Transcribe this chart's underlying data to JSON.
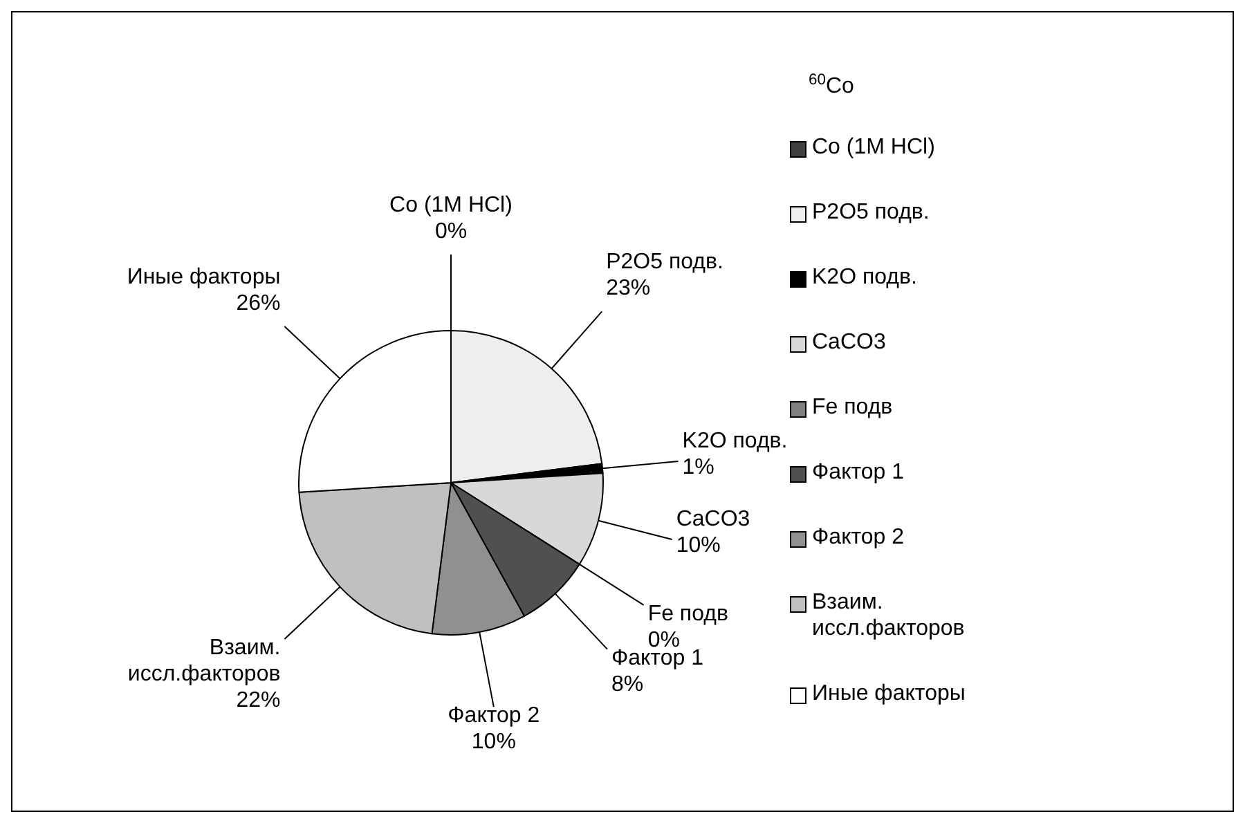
{
  "chart_data": {
    "type": "pie",
    "title": "$^{60}$Co",
    "categories": [
      "Co (1M HCl)",
      "P2O5 подв.",
      "K2O подв.",
      "CaCO3",
      "Fe подв",
      "Фактор 1",
      "Фактор 2",
      "Взаим. иссл.факторов",
      "Иные факторы"
    ],
    "values": [
      0,
      23,
      1,
      10,
      0,
      8,
      10,
      22,
      26
    ],
    "value_labels": [
      "0%",
      "23%",
      "1%",
      "10%",
      "0%",
      "8%",
      "10%",
      "22%",
      "26%"
    ],
    "colors": [
      "#404040",
      "#eeeeee",
      "#000000",
      "#d8d8d8",
      "#808080",
      "#505050",
      "#909090",
      "#c0c0c0",
      "#ffffff"
    ],
    "legend": "right"
  }
}
